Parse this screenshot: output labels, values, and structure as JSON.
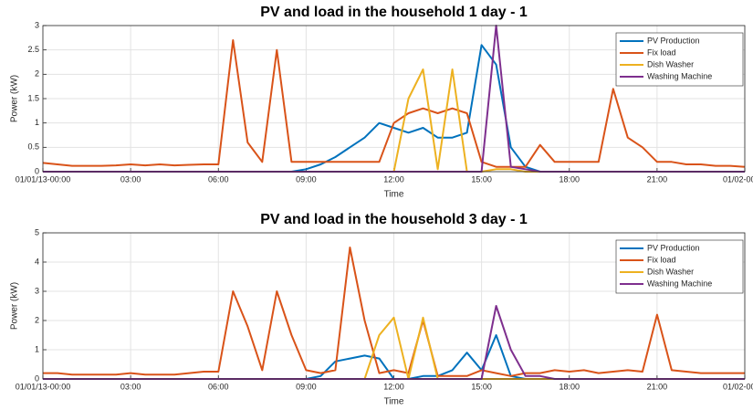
{
  "chart_data": [
    {
      "type": "line",
      "title": "PV and load in the household 1 day - 1",
      "xlabel": "Time",
      "ylabel": "Power (kW)",
      "x": [
        0,
        0.5,
        1,
        1.5,
        2,
        2.5,
        3,
        3.5,
        4,
        4.5,
        5,
        5.5,
        6,
        6.5,
        7,
        7.5,
        8,
        8.5,
        9,
        9.5,
        10,
        10.5,
        11,
        11.5,
        12,
        12.5,
        13,
        13.5,
        14,
        14.5,
        15,
        15.5,
        16,
        16.5,
        17,
        17.5,
        18,
        18.5,
        19,
        19.5,
        20,
        20.5,
        21,
        21.5,
        22,
        22.5,
        23,
        23.5,
        24
      ],
      "xlim": [
        0,
        24
      ],
      "xticks": [
        {
          "value": 0,
          "label": "01/01/13-00:00"
        },
        {
          "value": 3,
          "label": "03:00"
        },
        {
          "value": 6,
          "label": "06:00"
        },
        {
          "value": 9,
          "label": "09:00"
        },
        {
          "value": 12,
          "label": "12:00"
        },
        {
          "value": 15,
          "label": "15:00"
        },
        {
          "value": 18,
          "label": "18:00"
        },
        {
          "value": 21,
          "label": "21:00"
        },
        {
          "value": 24,
          "label": "01/02-00:00"
        }
      ],
      "ylim": [
        0,
        3
      ],
      "yticks": [
        0,
        0.5,
        1,
        1.5,
        2,
        2.5,
        3
      ],
      "grid": true,
      "legend": "upper right",
      "series": [
        {
          "name": "PV Production",
          "color": "#0072BD",
          "values": [
            0,
            0,
            0,
            0,
            0,
            0,
            0,
            0,
            0,
            0,
            0,
            0,
            0,
            0,
            0,
            0,
            0,
            0,
            0.05,
            0.15,
            0.3,
            0.5,
            0.7,
            1.0,
            0.9,
            0.8,
            0.9,
            0.7,
            0.7,
            0.8,
            2.6,
            2.2,
            0.5,
            0.1,
            0,
            0,
            0,
            0,
            0,
            0,
            0,
            0,
            0,
            0,
            0,
            0,
            0,
            0,
            0
          ]
        },
        {
          "name": "Fix load",
          "color": "#D95319",
          "values": [
            0.18,
            0.15,
            0.12,
            0.12,
            0.12,
            0.13,
            0.15,
            0.13,
            0.15,
            0.13,
            0.14,
            0.15,
            0.15,
            2.7,
            0.6,
            0.2,
            2.5,
            0.2,
            0.2,
            0.2,
            0.2,
            0.2,
            0.2,
            0.2,
            1.0,
            1.2,
            1.3,
            1.2,
            1.3,
            1.2,
            0.2,
            0.1,
            0.1,
            0.1,
            0.55,
            0.2,
            0.2,
            0.2,
            0.2,
            1.7,
            0.7,
            0.5,
            0.2,
            0.2,
            0.15,
            0.15,
            0.12,
            0.12,
            0.1
          ]
        },
        {
          "name": "Dish Washer",
          "color": "#EDB120",
          "values": [
            0,
            0,
            0,
            0,
            0,
            0,
            0,
            0,
            0,
            0,
            0,
            0,
            0,
            0,
            0,
            0,
            0,
            0,
            0,
            0,
            0,
            0,
            0,
            0,
            0,
            1.5,
            2.1,
            0.05,
            2.1,
            0,
            0,
            0.05,
            0.05,
            0,
            0,
            0,
            0,
            0,
            0,
            0,
            0,
            0,
            0,
            0,
            0,
            0,
            0,
            0,
            0
          ]
        },
        {
          "name": "Washing Machine",
          "color": "#7E2F8E",
          "values": [
            0,
            0,
            0,
            0,
            0,
            0,
            0,
            0,
            0,
            0,
            0,
            0,
            0,
            0,
            0,
            0,
            0,
            0,
            0,
            0,
            0,
            0,
            0,
            0,
            0,
            0,
            0,
            0,
            0,
            0,
            0,
            3.0,
            0.1,
            0.05,
            0,
            0,
            0,
            0,
            0,
            0,
            0,
            0,
            0,
            0,
            0,
            0,
            0,
            0,
            0
          ]
        }
      ]
    },
    {
      "type": "line",
      "title": "PV and load in the household 3 day - 1",
      "xlabel": "Time",
      "ylabel": "Power (kW)",
      "x": [
        0,
        0.5,
        1,
        1.5,
        2,
        2.5,
        3,
        3.5,
        4,
        4.5,
        5,
        5.5,
        6,
        6.5,
        7,
        7.5,
        8,
        8.5,
        9,
        9.5,
        10,
        10.5,
        11,
        11.5,
        12,
        12.5,
        13,
        13.5,
        14,
        14.5,
        15,
        15.5,
        16,
        16.5,
        17,
        17.5,
        18,
        18.5,
        19,
        19.5,
        20,
        20.5,
        21,
        21.5,
        22,
        22.5,
        23,
        23.5,
        24
      ],
      "xlim": [
        0,
        24
      ],
      "xticks": [
        {
          "value": 0,
          "label": "01/01/13-00:00"
        },
        {
          "value": 3,
          "label": "03:00"
        },
        {
          "value": 6,
          "label": "06:00"
        },
        {
          "value": 9,
          "label": "09:00"
        },
        {
          "value": 12,
          "label": "12:00"
        },
        {
          "value": 15,
          "label": "15:00"
        },
        {
          "value": 18,
          "label": "18:00"
        },
        {
          "value": 21,
          "label": "21:00"
        },
        {
          "value": 24,
          "label": "01/02-00:00"
        }
      ],
      "ylim": [
        0,
        5
      ],
      "yticks": [
        0,
        1,
        2,
        3,
        4,
        5
      ],
      "grid": true,
      "legend": "upper right",
      "series": [
        {
          "name": "PV Production",
          "color": "#0072BD",
          "values": [
            0,
            0,
            0,
            0,
            0,
            0,
            0,
            0,
            0,
            0,
            0,
            0,
            0,
            0,
            0,
            0,
            0,
            0,
            0,
            0.1,
            0.6,
            0.7,
            0.8,
            0.7,
            0,
            0,
            0.1,
            0.1,
            0.3,
            0.9,
            0.3,
            1.5,
            0.1,
            0,
            0,
            0,
            0,
            0,
            0,
            0,
            0,
            0,
            0,
            0,
            0,
            0,
            0,
            0,
            0
          ]
        },
        {
          "name": "Fix load",
          "color": "#D95319",
          "values": [
            0.2,
            0.2,
            0.15,
            0.15,
            0.15,
            0.15,
            0.2,
            0.15,
            0.15,
            0.15,
            0.2,
            0.25,
            0.25,
            3.0,
            1.8,
            0.3,
            3.0,
            1.5,
            0.3,
            0.2,
            0.3,
            4.5,
            2.0,
            0.2,
            0.3,
            0.2,
            2.0,
            0.1,
            0.1,
            0.1,
            0.3,
            0.2,
            0.1,
            0.2,
            0.2,
            0.3,
            0.25,
            0.3,
            0.2,
            0.25,
            0.3,
            0.25,
            2.2,
            0.3,
            0.25,
            0.2,
            0.2,
            0.2,
            0.2
          ]
        },
        {
          "name": "Dish Washer",
          "color": "#EDB120",
          "values": [
            0,
            0,
            0,
            0,
            0,
            0,
            0,
            0,
            0,
            0,
            0,
            0,
            0,
            0,
            0,
            0,
            0,
            0,
            0,
            0,
            0,
            0,
            0,
            1.5,
            2.1,
            0,
            2.1,
            0,
            0,
            0,
            0,
            0,
            0,
            0,
            0,
            0,
            0,
            0,
            0,
            0,
            0,
            0,
            0,
            0,
            0,
            0,
            0,
            0,
            0
          ]
        },
        {
          "name": "Washing Machine",
          "color": "#7E2F8E",
          "values": [
            0,
            0,
            0,
            0,
            0,
            0,
            0,
            0,
            0,
            0,
            0,
            0,
            0,
            0,
            0,
            0,
            0,
            0,
            0,
            0,
            0,
            0,
            0,
            0,
            0,
            0,
            0,
            0,
            0,
            0,
            0,
            2.5,
            1.0,
            0.1,
            0.1,
            0,
            0,
            0,
            0,
            0,
            0,
            0,
            0,
            0,
            0,
            0,
            0,
            0,
            0
          ]
        }
      ]
    }
  ]
}
